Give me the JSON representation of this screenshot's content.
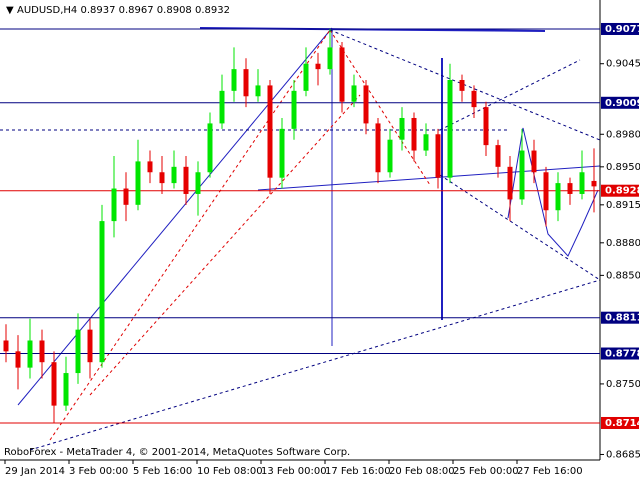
{
  "chart_data": {
    "type": "candlestick",
    "title": "AUDUSD,H4  0.8937 0.8967 0.8908 0.8932",
    "footer": "RoboForex - MetaTrader 4, © 2001-2014, MetaQuotes Software Corp.",
    "categories": [
      "29 Jan 2014",
      "3 Feb 00:00",
      "5 Feb 16:00",
      "10 Feb 08:00",
      "13 Feb 00:00",
      "17 Feb 16:00",
      "20 Feb 08:00",
      "25 Feb 00:00",
      "27 Feb 16:00"
    ],
    "open": [
      0.879,
      0.878,
      0.8765,
      0.879,
      0.877,
      0.873,
      0.876,
      0.88,
      0.877,
      0.89,
      0.893,
      0.8915,
      0.8955,
      0.8945,
      0.8935,
      0.895,
      0.8925,
      0.8945,
      0.899,
      0.902,
      0.904,
      0.9015,
      0.9025,
      0.894,
      0.8985,
      0.902,
      0.9045,
      0.904,
      0.906,
      0.901,
      0.9025,
      0.899,
      0.8945,
      0.8975,
      0.8995,
      0.8965,
      0.898,
      0.894,
      0.903,
      0.902,
      0.9005,
      0.897,
      0.895,
      0.892,
      0.8965,
      0.8945,
      0.891,
      0.8935,
      0.8925,
      0.8937
    ],
    "high": [
      0.8805,
      0.8795,
      0.881,
      0.88,
      0.878,
      0.8775,
      0.8815,
      0.881,
      0.8915,
      0.896,
      0.8945,
      0.8975,
      0.8965,
      0.896,
      0.8965,
      0.896,
      0.8955,
      0.9,
      0.9035,
      0.906,
      0.905,
      0.904,
      0.903,
      0.8995,
      0.903,
      0.906,
      0.9055,
      0.9077,
      0.9065,
      0.9035,
      0.903,
      0.8995,
      0.8985,
      0.9005,
      0.9,
      0.899,
      0.8985,
      0.9045,
      0.9035,
      0.9025,
      0.901,
      0.8975,
      0.896,
      0.8985,
      0.8975,
      0.895,
      0.8945,
      0.894,
      0.8965,
      0.8967
    ],
    "low": [
      0.877,
      0.8745,
      0.8755,
      0.8755,
      0.8714,
      0.8725,
      0.875,
      0.8755,
      0.8765,
      0.8885,
      0.89,
      0.891,
      0.8935,
      0.8925,
      0.893,
      0.8915,
      0.8905,
      0.894,
      0.8985,
      0.901,
      0.9005,
      0.901,
      0.8925,
      0.893,
      0.8975,
      0.9015,
      0.9025,
      0.9035,
      0.9,
      0.9005,
      0.898,
      0.8935,
      0.894,
      0.8965,
      0.8955,
      0.896,
      0.893,
      0.8935,
      0.901,
      0.8995,
      0.896,
      0.894,
      0.89,
      0.8915,
      0.8935,
      0.8895,
      0.89,
      0.8915,
      0.892,
      0.8908
    ],
    "close": [
      0.878,
      0.8765,
      0.879,
      0.877,
      0.873,
      0.876,
      0.88,
      0.877,
      0.89,
      0.893,
      0.8915,
      0.8955,
      0.8945,
      0.8935,
      0.895,
      0.8925,
      0.8945,
      0.899,
      0.902,
      0.904,
      0.9015,
      0.9025,
      0.894,
      0.8985,
      0.902,
      0.9045,
      0.904,
      0.906,
      0.901,
      0.9025,
      0.899,
      0.8945,
      0.8975,
      0.8995,
      0.8965,
      0.898,
      0.894,
      0.903,
      0.902,
      0.9005,
      0.897,
      0.895,
      0.892,
      0.8965,
      0.8945,
      0.891,
      0.8935,
      0.8925,
      0.8945,
      0.8932
    ],
    "up_color": "#00e600",
    "down_color": "#e60000",
    "ylim": [
      0.86799,
      0.91037
    ],
    "yticks": [
      0.9045,
      {
        "value": 0.898,
        "label": "0.8980"
      },
      {
        "value": 0.895,
        "label": "0.8950"
      },
      0.8915,
      {
        "value": 0.888,
        "label": "0.8880"
      },
      {
        "value": 0.885,
        "label": "0.8850"
      },
      {
        "value": 0.875,
        "label": "0.8750"
      },
      0.8685
    ],
    "levels": [
      {
        "value": 0.9077,
        "color": "#000080"
      },
      {
        "value": 0.9009,
        "color": "#000080"
      },
      {
        "value": 0.8928,
        "color": "#e00000"
      },
      {
        "value": 0.8811,
        "color": "#000080"
      },
      {
        "value": 0.8778,
        "color": "#000080"
      },
      {
        "value": 0.8714,
        "color": "#e00000"
      }
    ]
  }
}
